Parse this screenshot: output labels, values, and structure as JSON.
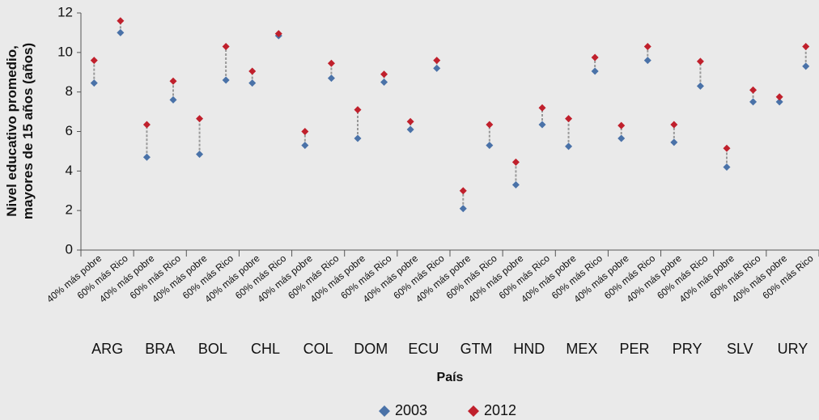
{
  "chart_data": {
    "type": "dot",
    "y_label": "Nivel educativo promedio, mayores de 15 años (años)",
    "x_label": "País",
    "categories": [
      "40% más pobre",
      "60% más Rico",
      "40% más pobre",
      "60% más Rico",
      "40% más pobre",
      "60% más Rico",
      "40% más pobre",
      "60% más Rico",
      "40% más pobre",
      "60% más Rico",
      "40% más pobre",
      "60% más Rico",
      "40% más pobre",
      "60% más Rico",
      "40% más pobre",
      "60% más Rico",
      "40% más pobre",
      "60% más Rico",
      "40% más pobre",
      "60% más Rico",
      "40% más pobre",
      "60% más Rico",
      "40% más pobre",
      "60% más Rico",
      "40% más pobre",
      "60% más Rico",
      "40% más pobre",
      "60% más Rico"
    ],
    "countries": [
      "ARG",
      "BRA",
      "BOL",
      "CHL",
      "COL",
      "DOM",
      "ECU",
      "GTM",
      "HND",
      "MEX",
      "PER",
      "PRY",
      "SLV",
      "URY"
    ],
    "series": [
      {
        "name": "2003",
        "color": "#4a72a8",
        "values": [
          8.45,
          11.0,
          4.7,
          7.6,
          4.85,
          8.6,
          8.45,
          10.85,
          5.3,
          8.7,
          5.65,
          8.5,
          6.1,
          9.2,
          2.1,
          5.3,
          3.3,
          6.35,
          5.25,
          9.05,
          5.65,
          9.6,
          5.45,
          8.3,
          4.2,
          7.5,
          7.5,
          9.3
        ]
      },
      {
        "name": "2012",
        "color": "#c0202c",
        "values": [
          9.6,
          11.6,
          6.35,
          8.55,
          6.65,
          10.3,
          9.05,
          10.95,
          6.0,
          9.45,
          7.1,
          8.9,
          6.5,
          9.6,
          3.0,
          6.35,
          4.45,
          7.2,
          6.65,
          9.75,
          6.3,
          10.3,
          6.35,
          9.55,
          5.15,
          8.1,
          7.75,
          10.3
        ]
      }
    ],
    "ylim": [
      0,
      12
    ],
    "yticks": [
      0,
      2,
      4,
      6,
      8,
      10,
      12
    ],
    "grid": false
  }
}
